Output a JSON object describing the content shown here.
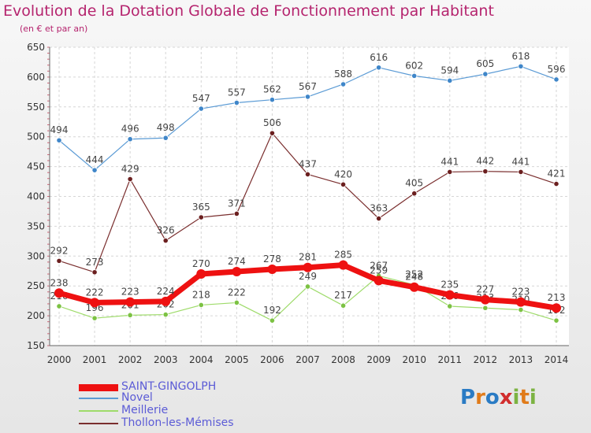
{
  "title": "Evolution de la Dotation Globale de Fonctionnement par Habitant",
  "subtitle": "(en € et par an)",
  "logo": {
    "letters": [
      "P",
      "r",
      "o",
      "x",
      "i",
      "t",
      "i"
    ],
    "colors": [
      "#2a7bc4",
      "#e07b1a",
      "#2a7bc4",
      "#d12d2d",
      "#7cb342",
      "#e07b1a",
      "#7cb342"
    ]
  },
  "chart_data": {
    "type": "line",
    "x": [
      "2000",
      "2001",
      "2002",
      "2003",
      "2004",
      "2005",
      "2006",
      "2007",
      "2008",
      "2009",
      "2010",
      "2011",
      "2012",
      "2013",
      "2014"
    ],
    "ylim": [
      150,
      650
    ],
    "yticks": [
      "150",
      "200",
      "250",
      "300",
      "350",
      "400",
      "450",
      "500",
      "550",
      "600",
      "650"
    ],
    "grid": true,
    "legend_position": "bottom-left",
    "series": [
      {
        "name": "Novel",
        "color": "#5b9bd5",
        "width": 1.2,
        "marker": "#3f86c9",
        "values": [
          494,
          444,
          496,
          498,
          547,
          557,
          562,
          567,
          588,
          616,
          602,
          594,
          605,
          618,
          596
        ],
        "labels": [
          "494",
          "444",
          "496",
          "498",
          "547",
          "557",
          "562",
          "567",
          "588",
          "616",
          "602",
          "594",
          "605",
          "618",
          "596"
        ]
      },
      {
        "name": "Thollon-les-Mémises",
        "color": "#7a2e2e",
        "width": 1.2,
        "marker": "#6b1f1f",
        "values": [
          292,
          273,
          429,
          326,
          365,
          371,
          506,
          437,
          420,
          363,
          405,
          441,
          442,
          441,
          421
        ],
        "labels": [
          "292",
          "273",
          "429",
          "326",
          "365",
          "371",
          "506",
          "437",
          "420",
          "363",
          "405",
          "441",
          "442",
          "441",
          "421"
        ]
      },
      {
        "name": "Meillerie",
        "color": "#9edb6a",
        "width": 1.2,
        "marker": "#7cc243",
        "values": [
          216,
          196,
          201,
          202,
          218,
          222,
          192,
          249,
          217,
          267,
          252,
          216,
          213,
          210,
          192
        ],
        "labels": [
          "216",
          "196",
          "201",
          "202",
          "218",
          "222",
          "192",
          "249",
          "217",
          "267",
          "252",
          "216",
          "213",
          "210",
          "192"
        ]
      },
      {
        "name": "SAINT-GINGOLPH",
        "color": "#ee1111",
        "width": 7,
        "marker": "#ee1111",
        "values": [
          238,
          222,
          223,
          224,
          270,
          274,
          278,
          281,
          285,
          259,
          248,
          235,
          227,
          223,
          213
        ],
        "labels": [
          "238",
          "222",
          "223",
          "224",
          "270",
          "274",
          "278",
          "281",
          "285",
          "259",
          "248",
          "235",
          "227",
          "223",
          "213"
        ]
      }
    ],
    "legend": [
      "SAINT-GINGOLPH",
      "Novel",
      "Meillerie",
      "Thollon-les-Mémises"
    ]
  }
}
